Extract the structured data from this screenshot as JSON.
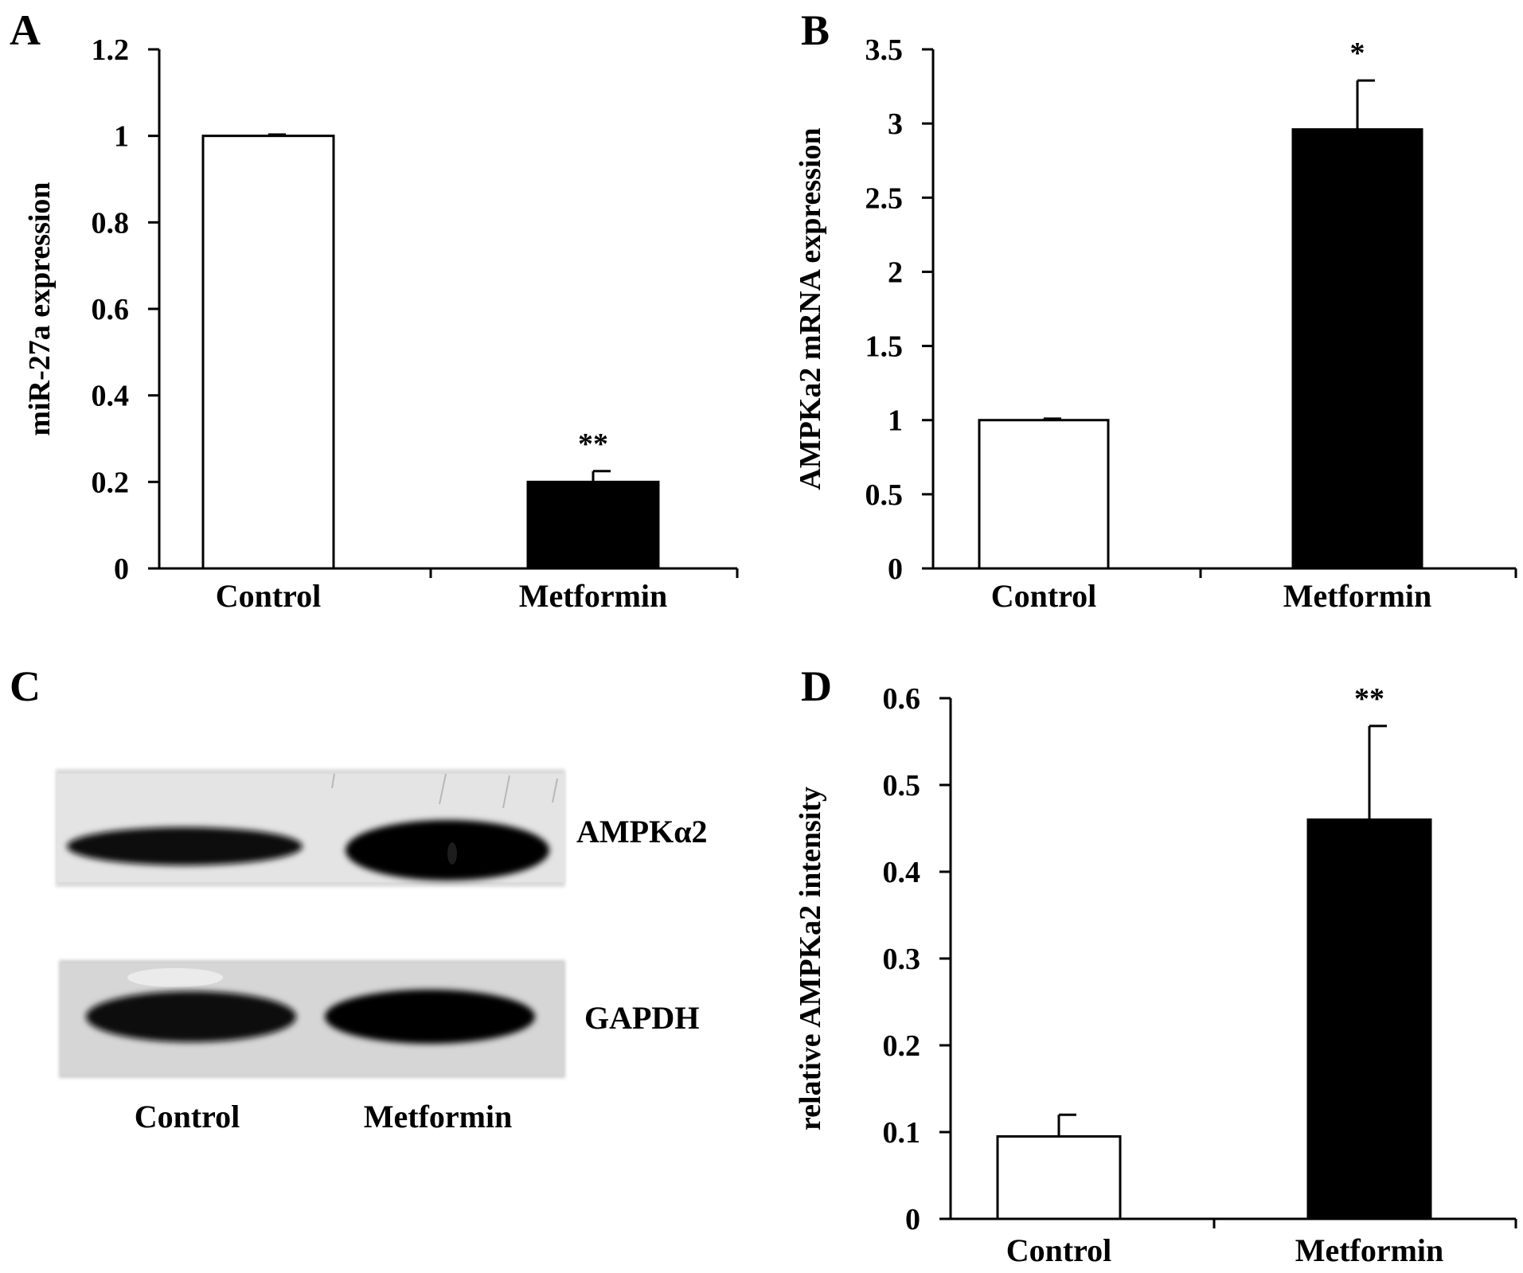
{
  "figure": {
    "panels": [
      {
        "letter": "A"
      },
      {
        "letter": "B"
      },
      {
        "letter": "C"
      },
      {
        "letter": "D"
      }
    ]
  },
  "chart_data": [
    {
      "panel": "A",
      "type": "bar",
      "categories": [
        "Control",
        "Metformin"
      ],
      "values": [
        1.0,
        0.2
      ],
      "errors": [
        0.003,
        0.025
      ],
      "bar_colors": [
        "#ffffff",
        "#000000"
      ],
      "significance": [
        "",
        "**"
      ],
      "ylabel": "miR-27a expression",
      "ylim": [
        0,
        1.2
      ],
      "yticks": [
        0,
        0.2,
        0.4,
        0.6,
        0.8,
        1,
        1.2
      ],
      "ytick_labels": [
        "0",
        "0.2",
        "0.4",
        "0.6",
        "0.8",
        "1",
        "1.2"
      ],
      "grid": false
    },
    {
      "panel": "B",
      "type": "bar",
      "categories": [
        "Control",
        "Metformin"
      ],
      "values": [
        1.0,
        2.96
      ],
      "errors": [
        0.01,
        0.33
      ],
      "bar_colors": [
        "#ffffff",
        "#000000"
      ],
      "significance": [
        "",
        "*"
      ],
      "ylabel": "AMPKa2 mRNA expression",
      "ylim": [
        0,
        3.5
      ],
      "yticks": [
        0,
        0.5,
        1,
        1.5,
        2,
        2.5,
        3,
        3.5
      ],
      "ytick_labels": [
        "0",
        "0.5",
        "1",
        "1.5",
        "2",
        "2.5",
        "3",
        "3.5"
      ],
      "grid": false
    },
    {
      "panel": "D",
      "type": "bar",
      "categories": [
        "Control",
        "Metformin"
      ],
      "values": [
        0.095,
        0.46
      ],
      "errors": [
        0.025,
        0.108
      ],
      "bar_colors": [
        "#ffffff",
        "#000000"
      ],
      "significance": [
        "",
        "**"
      ],
      "ylabel": "relative AMPKa2 intensity",
      "ylim": [
        0,
        0.6
      ],
      "yticks": [
        0,
        0.1,
        0.2,
        0.3,
        0.4,
        0.5,
        0.6
      ],
      "ytick_labels": [
        "0",
        "0.1",
        "0.2",
        "0.3",
        "0.4",
        "0.5",
        "0.6"
      ],
      "grid": false
    }
  ],
  "blot": {
    "bands": [
      {
        "label": "AMPKα2"
      },
      {
        "label": "GAPDH"
      }
    ],
    "lanes": [
      {
        "label": "Control"
      },
      {
        "label": "Metformin"
      }
    ]
  }
}
